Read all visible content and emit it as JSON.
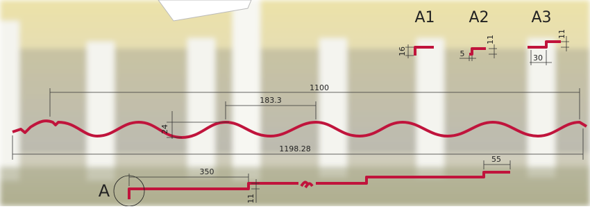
{
  "details": [
    {
      "label": "A1",
      "height": 16
    },
    {
      "label": "A2",
      "offset": 5,
      "height": 11
    },
    {
      "label": "A3",
      "width": 30,
      "height": 11
    }
  ],
  "profile": {
    "cover_width": 1100,
    "pitch": 183.3,
    "wave_height": 24,
    "total_width": 1198.28
  },
  "side_view": {
    "detail_label": "A",
    "step_length": 350,
    "step_height": 11,
    "end_length": 55
  }
}
